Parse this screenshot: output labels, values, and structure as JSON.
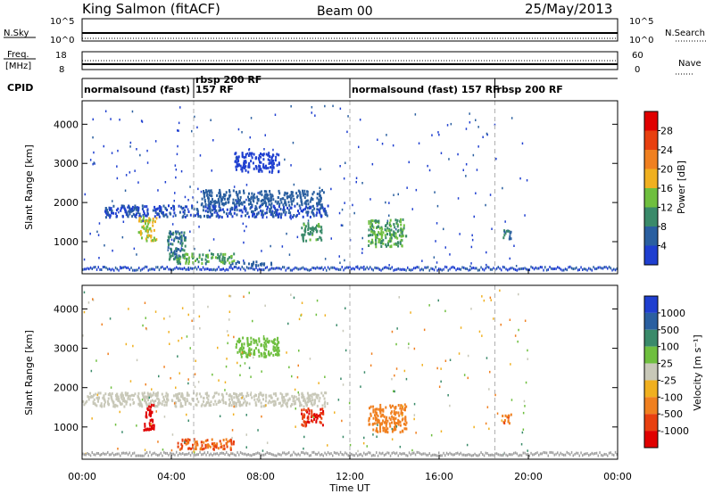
{
  "header": {
    "station": "King Salmon (fitACF)",
    "beam": "Beam 00",
    "date": "25/May/2013"
  },
  "top_panels": {
    "nsky_label": "N.Sky",
    "nsky_ticks": [
      "10^5",
      "10^0"
    ],
    "nsearch_label": "N.Search",
    "nsearch_ticks": [
      "10^5",
      "10^0"
    ],
    "freq_label_line1": "Freq.",
    "freq_label_line2": "[MHz]",
    "freq_ticks": [
      "18",
      "8"
    ],
    "nave_label": "Nave",
    "nave_ticks": [
      "60",
      "0"
    ],
    "cpid_label": "CPID"
  },
  "cpid_segments": [
    {
      "start_hour": 0.0,
      "label": "normalsound (fast)"
    },
    {
      "start_hour": 5.0,
      "label": "rbsp 200 RF",
      "label2": "157 RF"
    },
    {
      "start_hour": 12.0,
      "label": "normalsound (fast) 157 RF"
    },
    {
      "start_hour": 18.5,
      "label": "rbsp 200 RF"
    }
  ],
  "colors": {
    "power_scale": [
      "#1f3fd0",
      "#2a5fa0",
      "#3a8a6a",
      "#6fbf3f",
      "#f0b020",
      "#f08020",
      "#e84010",
      "#e00000"
    ],
    "velocity_scale": [
      "#1f3fd0",
      "#2a5fa0",
      "#3a8a6a",
      "#6fbf3f",
      "#c8c8b8",
      "#f0b020",
      "#f08020",
      "#e84010",
      "#e00000"
    ],
    "ground_scatter": "#a0a0a0"
  },
  "power_colorbar": {
    "label": "Power [dB]",
    "ticks": [
      "28",
      "24",
      "20",
      "16",
      "12",
      "8",
      "4"
    ]
  },
  "velocity_colorbar": {
    "label": "Velocity [m s⁻¹]",
    "ticks": [
      "1000",
      "500",
      "100",
      "25",
      "-25",
      "-100",
      "-500",
      "-1000"
    ]
  },
  "chart_data": {
    "type": "heatmap",
    "xlabel": "Time UT",
    "ylabel": "Slant Range [km]",
    "x_range_hours": [
      0,
      24
    ],
    "x_ticks": [
      "00:00",
      "04:00",
      "08:00",
      "12:00",
      "16:00",
      "20:00",
      "00:00"
    ],
    "ylim_km": [
      180,
      4600
    ],
    "y_ticks": [
      "1000",
      "2000",
      "3000",
      "4000"
    ],
    "panels": [
      {
        "name": "Power",
        "units": "dB",
        "scale": [
          0,
          30
        ],
        "regions": [
          {
            "t0": 1.0,
            "t1": 11.0,
            "r0": 1650,
            "r1": 1950,
            "value": 6
          },
          {
            "t0": 2.5,
            "t1": 3.3,
            "r0": 1050,
            "r1": 1650,
            "value": 18
          },
          {
            "t0": 3.8,
            "t1": 4.6,
            "r0": 550,
            "r1": 1300,
            "value": 10
          },
          {
            "t0": 4.2,
            "t1": 6.8,
            "r0": 470,
            "r1": 720,
            "value": 14
          },
          {
            "t0": 6.6,
            "t1": 8.5,
            "r0": 420,
            "r1": 520,
            "value": 8
          },
          {
            "t0": 5.3,
            "t1": 10.8,
            "r0": 1950,
            "r1": 2350,
            "value": 8
          },
          {
            "t0": 6.8,
            "t1": 8.8,
            "r0": 2800,
            "r1": 3300,
            "value": 5
          },
          {
            "t0": 9.8,
            "t1": 10.7,
            "r0": 1050,
            "r1": 1500,
            "value": 12
          },
          {
            "t0": 12.8,
            "t1": 14.5,
            "r0": 900,
            "r1": 1600,
            "value": 14
          },
          {
            "t0": 18.8,
            "t1": 19.2,
            "r0": 1100,
            "r1": 1350,
            "value": 10
          }
        ]
      },
      {
        "name": "Velocity",
        "units": "m/s",
        "scale": [
          -1000,
          1000
        ],
        "regions": [
          {
            "t0": 0.0,
            "t1": 11.0,
            "r0": 1550,
            "r1": 1900,
            "value": 0
          },
          {
            "t0": 2.7,
            "t1": 3.2,
            "r0": 950,
            "r1": 1600,
            "value": -900
          },
          {
            "t0": 4.2,
            "t1": 6.8,
            "r0": 450,
            "r1": 720,
            "value": -300
          },
          {
            "t0": 6.8,
            "t1": 8.8,
            "r0": 2800,
            "r1": 3300,
            "value": 20
          },
          {
            "t0": 9.8,
            "t1": 10.8,
            "r0": 1050,
            "r1": 1500,
            "value": -600
          },
          {
            "t0": 12.8,
            "t1": 14.5,
            "r0": 900,
            "r1": 1600,
            "value": -200
          },
          {
            "t0": 18.8,
            "t1": 19.2,
            "r0": 1100,
            "r1": 1350,
            "value": -300
          }
        ]
      }
    ]
  }
}
